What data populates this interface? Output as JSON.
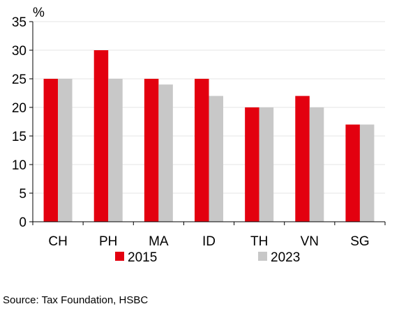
{
  "chart_data": {
    "type": "bar",
    "title": "",
    "xlabel": "",
    "ylabel": "%",
    "ylim": [
      0,
      35
    ],
    "yticks": [
      0,
      5,
      10,
      15,
      20,
      25,
      30,
      35
    ],
    "grid": true,
    "legend": "bottom",
    "categories": [
      "CH",
      "PH",
      "MA",
      "ID",
      "TH",
      "VN",
      "SG"
    ],
    "series": [
      {
        "name": "2015",
        "color": "#e3000f",
        "values": [
          25,
          30,
          25,
          25,
          20,
          22,
          17
        ]
      },
      {
        "name": "2023",
        "color": "#c8c8c8",
        "values": [
          25,
          25,
          24,
          22,
          20,
          20,
          17
        ]
      }
    ]
  },
  "source": "Source: Tax Foundation, HSBC"
}
